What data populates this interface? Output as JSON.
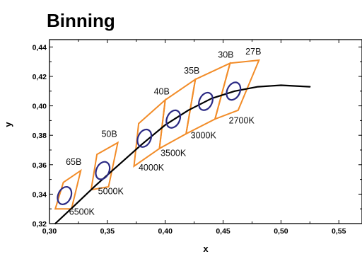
{
  "chart_data": {
    "type": "scatter",
    "title": "Binning",
    "xlabel": "x",
    "ylabel": "y",
    "xlim": [
      0.3,
      0.57
    ],
    "ylim": [
      0.32,
      0.445
    ],
    "x_ticks": [
      "0,30",
      "0,35",
      "0,40",
      "0,45",
      "0,50",
      "0,55"
    ],
    "y_ticks": [
      "0,32",
      "0,34",
      "0,36",
      "0,38",
      "0,40",
      "0,42",
      "0,44"
    ],
    "curve": {
      "x": [
        0.305,
        0.32,
        0.34,
        0.36,
        0.38,
        0.4,
        0.42,
        0.44,
        0.46,
        0.48,
        0.5,
        0.525
      ],
      "y": [
        0.32,
        0.331,
        0.346,
        0.36,
        0.374,
        0.387,
        0.397,
        0.405,
        0.41,
        0.413,
        0.414,
        0.413
      ]
    },
    "bins": [
      {
        "name": "65B",
        "cct": "6500K",
        "center": [
          0.313,
          0.339
        ],
        "quad": [
          [
            0.305,
            0.33
          ],
          [
            0.312,
            0.348
          ],
          [
            0.327,
            0.356
          ],
          [
            0.319,
            0.33
          ]
        ]
      },
      {
        "name": "50B",
        "cct": "5000K",
        "center": [
          0.346,
          0.356
        ],
        "quad": [
          [
            0.336,
            0.343
          ],
          [
            0.341,
            0.367
          ],
          [
            0.359,
            0.375
          ],
          [
            0.351,
            0.345
          ]
        ]
      },
      {
        "name": "40B",
        "cct": "4000K",
        "center": [
          0.382,
          0.378
        ],
        "quad": [
          [
            0.373,
            0.359
          ],
          [
            0.377,
            0.388
          ],
          [
            0.4,
            0.404
          ],
          [
            0.395,
            0.371
          ]
        ]
      },
      {
        "name": "35B",
        "cct": "3500K",
        "center": [
          0.407,
          0.391
        ],
        "quad": [
          [
            0.395,
            0.371
          ],
          [
            0.4,
            0.404
          ],
          [
            0.426,
            0.418
          ],
          [
            0.418,
            0.381
          ]
        ]
      },
      {
        "name": "30B",
        "cct": "3000K",
        "center": [
          0.435,
          0.403
        ],
        "quad": [
          [
            0.418,
            0.381
          ],
          [
            0.426,
            0.418
          ],
          [
            0.456,
            0.429
          ],
          [
            0.443,
            0.391
          ]
        ]
      },
      {
        "name": "27B",
        "cct": "2700K",
        "center": [
          0.459,
          0.41
        ],
        "quad": [
          [
            0.443,
            0.391
          ],
          [
            0.456,
            0.429
          ],
          [
            0.481,
            0.431
          ],
          [
            0.463,
            0.397
          ]
        ]
      }
    ],
    "colors": {
      "bin_outline": "#f28c28",
      "ellipse": "#2b2a84",
      "curve": "#000000"
    },
    "grid": false,
    "legend": "none"
  }
}
